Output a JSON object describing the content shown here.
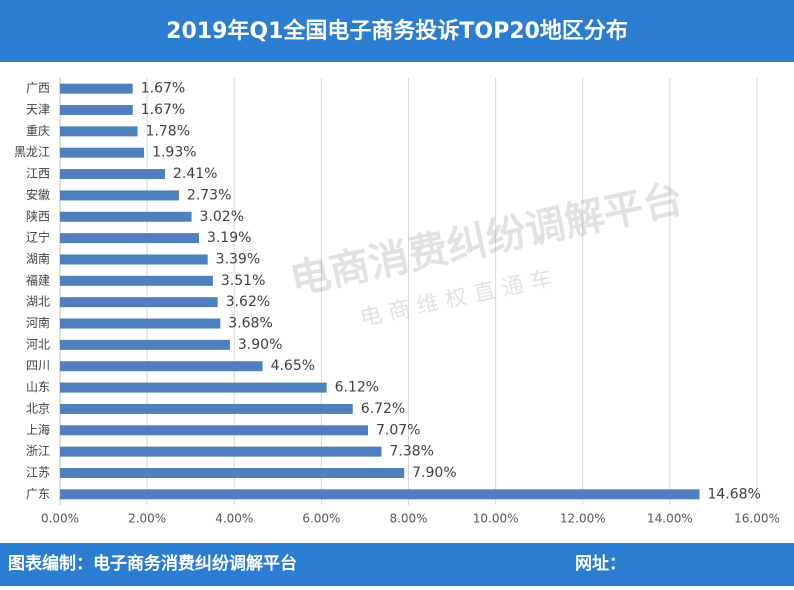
{
  "chart_data": {
    "type": "bar",
    "orientation": "horizontal",
    "title": "2019年Q1全国电子商务投诉TOP20地区分布",
    "categories": [
      "广西",
      "天津",
      "重庆",
      "黑龙江",
      "江西",
      "安徽",
      "陕西",
      "辽宁",
      "湖南",
      "福建",
      "湖北",
      "河南",
      "河北",
      "四川",
      "山东",
      "北京",
      "上海",
      "浙江",
      "江苏",
      "广东"
    ],
    "values": [
      1.67,
      1.67,
      1.78,
      1.93,
      2.41,
      2.73,
      3.02,
      3.19,
      3.39,
      3.51,
      3.62,
      3.68,
      3.9,
      4.65,
      6.12,
      6.72,
      7.07,
      7.38,
      7.9,
      14.68
    ],
    "value_labels": [
      "1.67%",
      "1.67%",
      "1.78%",
      "1.93%",
      "2.41%",
      "2.73%",
      "3.02%",
      "3.19%",
      "3.39%",
      "3.51%",
      "3.62%",
      "3.68%",
      "3.90%",
      "4.65%",
      "6.12%",
      "6.72%",
      "7.07%",
      "7.38%",
      "7.90%",
      "14.68%"
    ],
    "color": "#4f7fbd",
    "xlim": [
      0,
      16
    ],
    "xticks": [
      {
        "value": 0,
        "label": "0.00%"
      },
      {
        "value": 2,
        "label": "2.00%"
      },
      {
        "value": 4,
        "label": "4.00%"
      },
      {
        "value": 6,
        "label": "6.00%"
      },
      {
        "value": 8,
        "label": "8.00%"
      },
      {
        "value": 10,
        "label": "10.00%"
      },
      {
        "value": 12,
        "label": "12.00%"
      },
      {
        "value": 14,
        "label": "14.00%"
      },
      {
        "value": 16,
        "label": "16.00%"
      }
    ],
    "grid": true,
    "watermark": [
      "电商消费纠纷调解平台",
      "电 商 维 权 直 通 车"
    ],
    "footer_left": "图表编制：电子商务消费纠纷调解平台",
    "footer_right": "网址："
  }
}
